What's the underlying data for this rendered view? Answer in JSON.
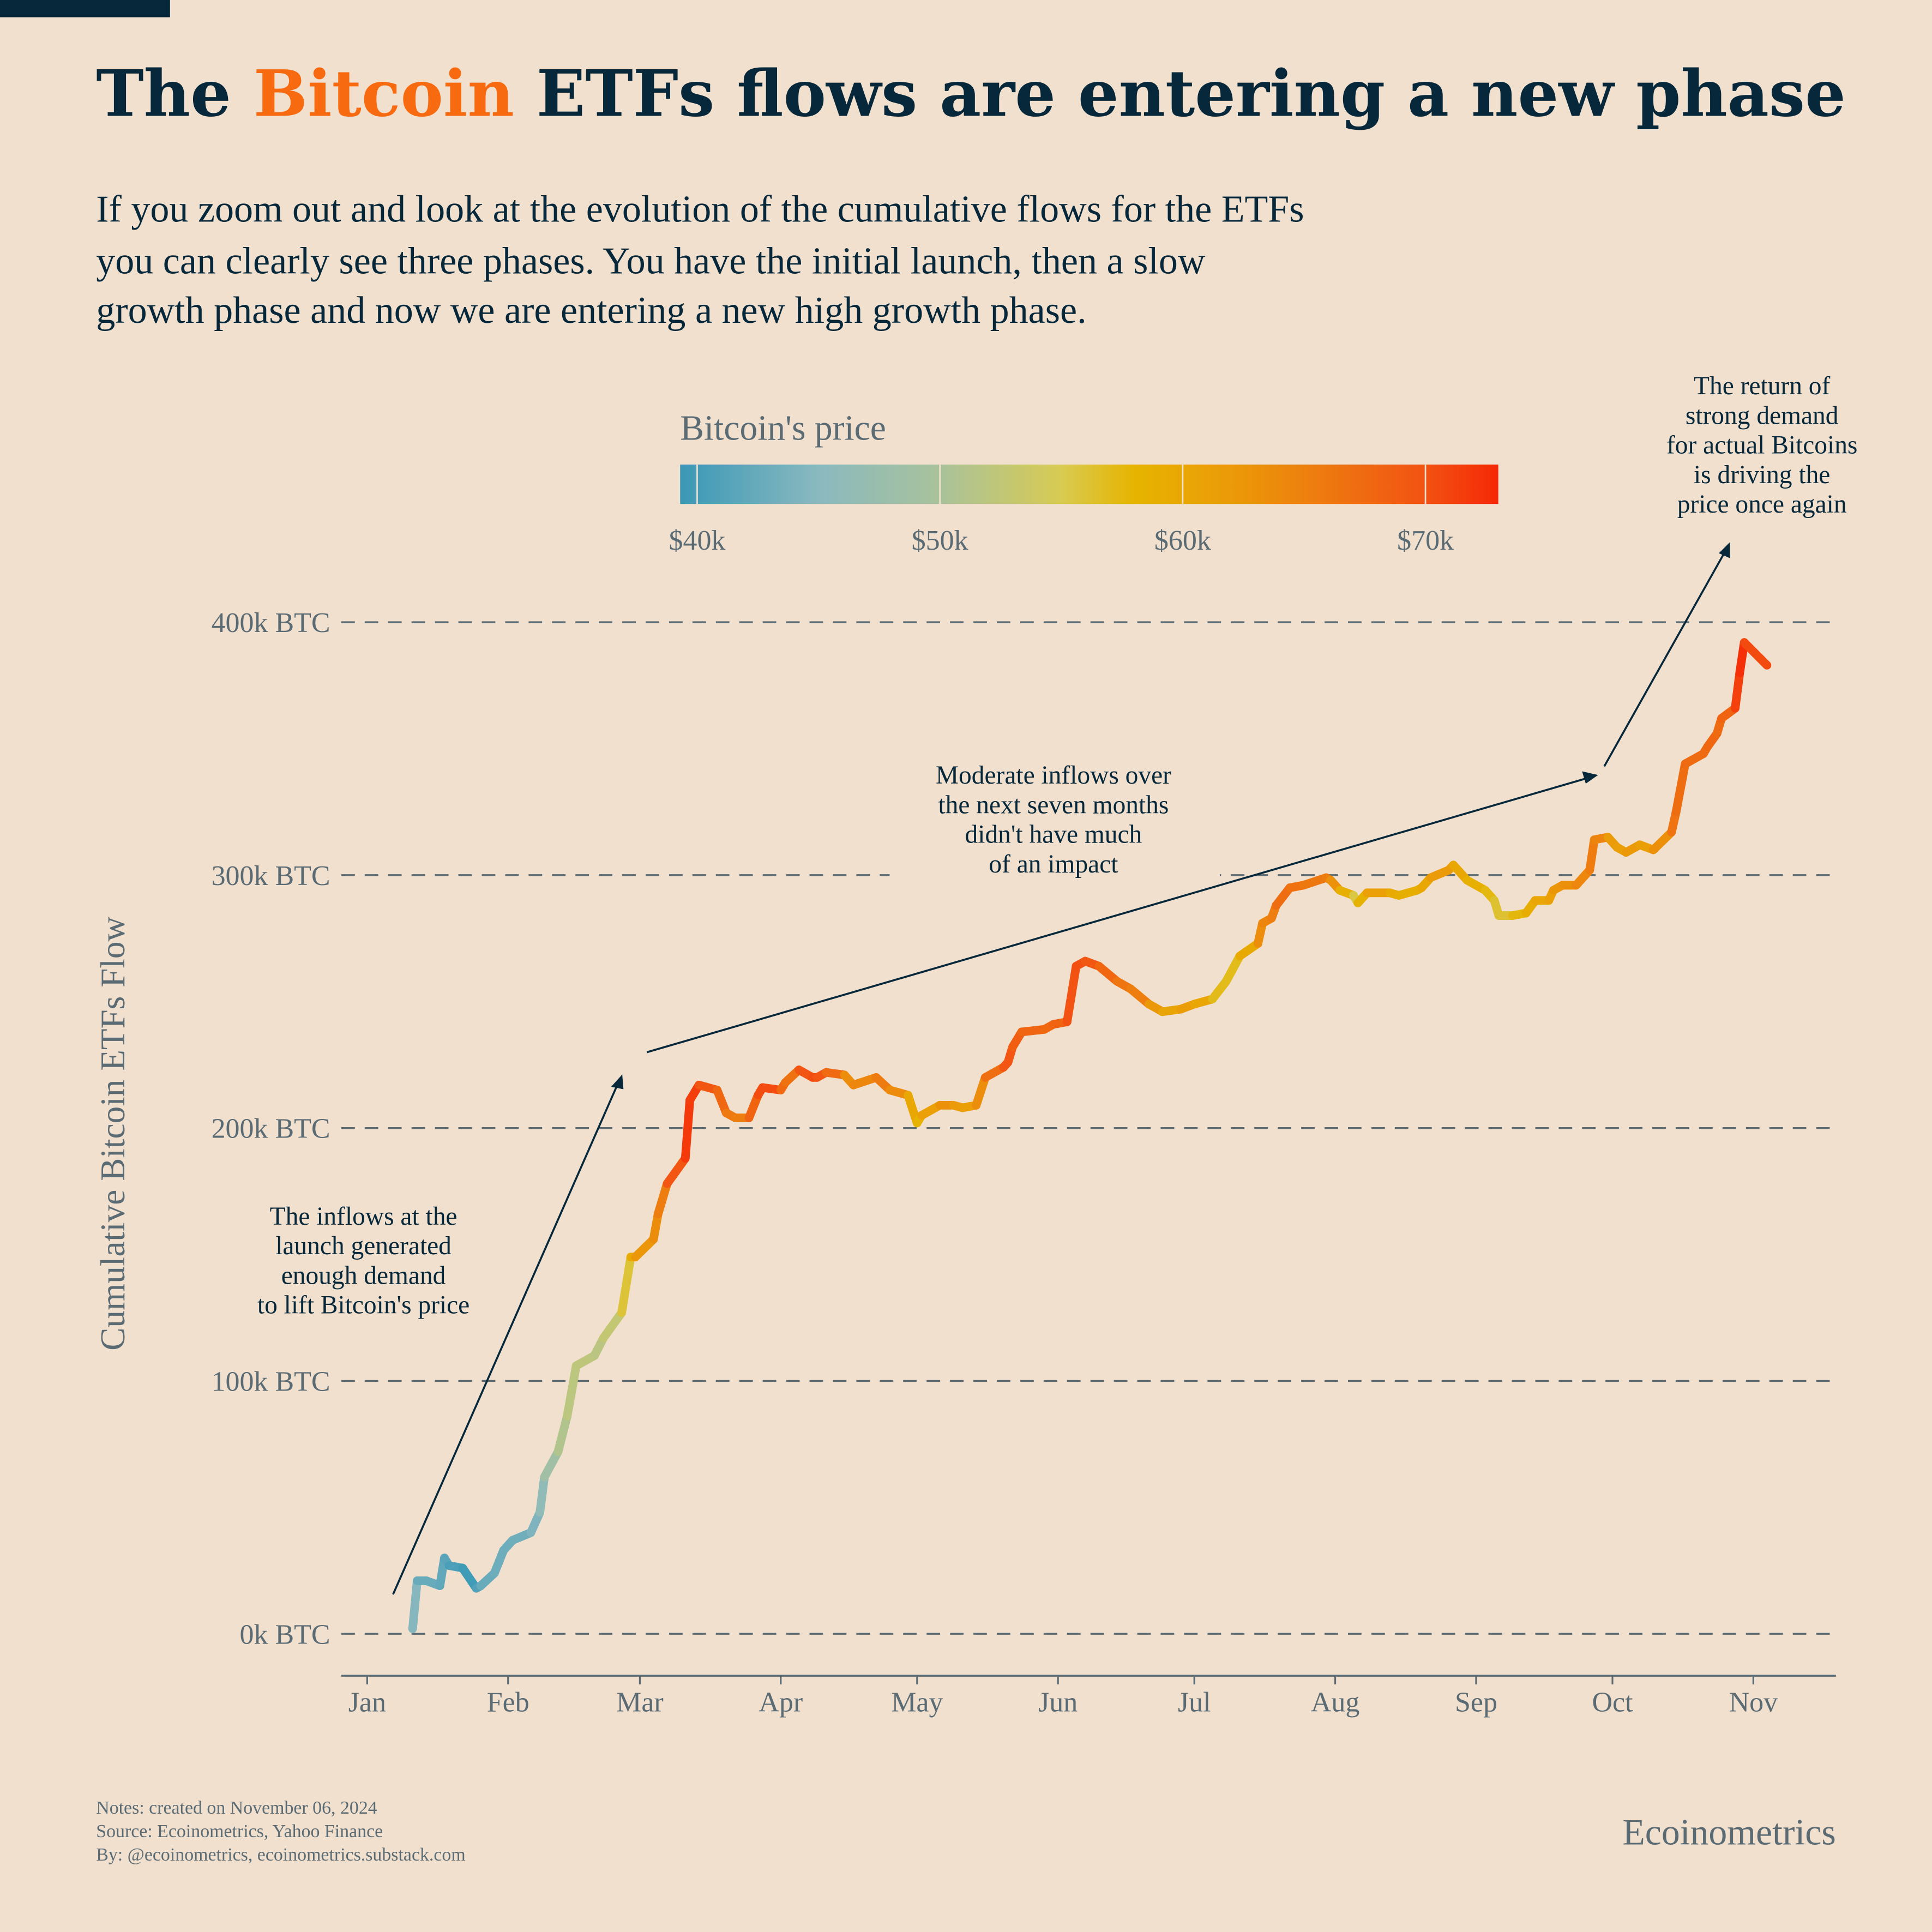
{
  "title": {
    "pre": "The ",
    "highlight": "Bitcoin",
    "post": " ETFs flows are entering a new phase",
    "highlight_color": "#f86a10"
  },
  "subtitle": [
    "If you zoom out and look at the evolution of the cumulative flows for the ETFs",
    "you can clearly see three phases. You have the initial launch, then a slow",
    "growth phase and now we are entering a new high growth phase."
  ],
  "colorbar": {
    "title": "Bitcoin's price",
    "ticks": [
      "$40k",
      "$50k",
      "$60k",
      "$70k"
    ],
    "tick_values": [
      40,
      50,
      60,
      70
    ],
    "range": [
      39.3,
      73
    ],
    "stops": [
      {
        "v": 39.3,
        "c": "#3a98b6"
      },
      {
        "v": 45,
        "c": "#8ab9bf"
      },
      {
        "v": 50,
        "c": "#a9c29b"
      },
      {
        "v": 55,
        "c": "#d8cb52"
      },
      {
        "v": 58,
        "c": "#e6b400"
      },
      {
        "v": 62,
        "c": "#eb9a08"
      },
      {
        "v": 66,
        "c": "#ee7810"
      },
      {
        "v": 70,
        "c": "#f25212"
      },
      {
        "v": 73,
        "c": "#f52806"
      }
    ]
  },
  "annotations": {
    "launch": [
      "The inflows at the",
      "launch generated",
      "enough demand",
      "to lift Bitcoin's price"
    ],
    "moderate": [
      "Moderate inflows over",
      "the next seven months",
      "didn't have much",
      "of an impact"
    ],
    "return": [
      "The return of",
      "strong demand",
      "for actual Bitcoins",
      "is driving the",
      "price once again"
    ]
  },
  "chart_data": {
    "type": "line",
    "title": "",
    "xlabel": "",
    "ylabel": "Cumulative Bitcoin ETFs Flow",
    "ylim": [
      0,
      400
    ],
    "y_ticks": [
      "0k BTC",
      "100k BTC",
      "200k BTC",
      "300k BTC",
      "400k BTC"
    ],
    "y_tick_values": [
      0,
      100,
      200,
      300,
      400
    ],
    "x_ticks": [
      "Jan",
      "Feb",
      "Mar",
      "Apr",
      "May",
      "Jun",
      "Jul",
      "Aug",
      "Sep",
      "Oct",
      "Nov"
    ],
    "x_tick_dates": [
      "2024-01-01",
      "2024-02-01",
      "2024-03-01",
      "2024-04-01",
      "2024-05-01",
      "2024-06-01",
      "2024-07-01",
      "2024-08-01",
      "2024-09-01",
      "2024-10-01",
      "2024-11-01"
    ],
    "grid": "horizontal dashed",
    "color_by": "Bitcoin's price (k$)",
    "points": [
      [
        "2024-01-11",
        2,
        46.6
      ],
      [
        "2024-01-12",
        21,
        42.8
      ],
      [
        "2024-01-14",
        21,
        42.5
      ],
      [
        "2024-01-17",
        19,
        42.7
      ],
      [
        "2024-01-18",
        30,
        41.3
      ],
      [
        "2024-01-19",
        27,
        41.6
      ],
      [
        "2024-01-22",
        26,
        39.5
      ],
      [
        "2024-01-25",
        18,
        40.0
      ],
      [
        "2024-01-26",
        19,
        41.8
      ],
      [
        "2024-01-29",
        24,
        43.3
      ],
      [
        "2024-01-31",
        33,
        42.6
      ],
      [
        "2024-02-02",
        37,
        43.2
      ],
      [
        "2024-02-06",
        40,
        43.1
      ],
      [
        "2024-02-08",
        48,
        45.3
      ],
      [
        "2024-02-09",
        62,
        47.1
      ],
      [
        "2024-02-12",
        72,
        50.0
      ],
      [
        "2024-02-14",
        86,
        51.8
      ],
      [
        "2024-02-16",
        106,
        52.1
      ],
      [
        "2024-02-20",
        110,
        52.3
      ],
      [
        "2024-02-22",
        117,
        51.3
      ],
      [
        "2024-02-26",
        127,
        54.5
      ],
      [
        "2024-02-28",
        149,
        57.5
      ],
      [
        "2024-02-29",
        149,
        61.2
      ],
      [
        "2024-03-04",
        156,
        63.5
      ],
      [
        "2024-03-05",
        166,
        63.8
      ],
      [
        "2024-03-07",
        178,
        67.0
      ],
      [
        "2024-03-11",
        188,
        72.1
      ],
      [
        "2024-03-12",
        211,
        71.5
      ],
      [
        "2024-03-14",
        217,
        71.4
      ],
      [
        "2024-03-18",
        215,
        67.6
      ],
      [
        "2024-03-20",
        206,
        67.9
      ],
      [
        "2024-03-22",
        204,
        63.8
      ],
      [
        "2024-03-25",
        204,
        67.0
      ],
      [
        "2024-03-27",
        213,
        69.5
      ],
      [
        "2024-03-28",
        216,
        71.3
      ],
      [
        "2024-04-01",
        215,
        69.7
      ],
      [
        "2024-04-02",
        218,
        65.5
      ],
      [
        "2024-04-05",
        223,
        67.8
      ],
      [
        "2024-04-08",
        220,
        71.6
      ],
      [
        "2024-04-09",
        220,
        69.1
      ],
      [
        "2024-04-11",
        222,
        70.0
      ],
      [
        "2024-04-15",
        221,
        65.0
      ],
      [
        "2024-04-17",
        217,
        62.0
      ],
      [
        "2024-04-22",
        220,
        66.8
      ],
      [
        "2024-04-25",
        215,
        64.5
      ],
      [
        "2024-04-29",
        213,
        63.1
      ],
      [
        "2024-05-01",
        202,
        57.0
      ],
      [
        "2024-05-02",
        205,
        59.1
      ],
      [
        "2024-05-06",
        209,
        63.2
      ],
      [
        "2024-05-09",
        209,
        63.1
      ],
      [
        "2024-05-11",
        208,
        60.8
      ],
      [
        "2024-05-14",
        209,
        61.6
      ],
      [
        "2024-05-16",
        220,
        65.2
      ],
      [
        "2024-05-20",
        224,
        69.0
      ],
      [
        "2024-05-21",
        226,
        70.1
      ],
      [
        "2024-05-22",
        232,
        69.1
      ],
      [
        "2024-05-24",
        238,
        68.5
      ],
      [
        "2024-05-29",
        239,
        67.6
      ],
      [
        "2024-05-31",
        241,
        67.5
      ],
      [
        "2024-06-03",
        242,
        68.8
      ],
      [
        "2024-06-05",
        264,
        71.1
      ],
      [
        "2024-06-07",
        266,
        69.3
      ],
      [
        "2024-06-10",
        264,
        69.7
      ],
      [
        "2024-06-14",
        258,
        66.0
      ],
      [
        "2024-06-17",
        255,
        66.6
      ],
      [
        "2024-06-21",
        249,
        64.1
      ],
      [
        "2024-06-24",
        246,
        60.3
      ],
      [
        "2024-06-28",
        247,
        60.3
      ],
      [
        "2024-07-01",
        249,
        62.7
      ],
      [
        "2024-07-05",
        251,
        57.5
      ],
      [
        "2024-07-08",
        258,
        56.7
      ],
      [
        "2024-07-11",
        268,
        57.3
      ],
      [
        "2024-07-15",
        273,
        62.0
      ],
      [
        "2024-07-16",
        281,
        65.0
      ],
      [
        "2024-07-18",
        283,
        63.9
      ],
      [
        "2024-07-19",
        288,
        66.7
      ],
      [
        "2024-07-22",
        295,
        67.6
      ],
      [
        "2024-07-25",
        296,
        65.8
      ],
      [
        "2024-07-30",
        299,
        66.2
      ],
      [
        "2024-07-31",
        298,
        64.6
      ],
      [
        "2024-08-02",
        294,
        61.4
      ],
      [
        "2024-08-05",
        292,
        56.0
      ],
      [
        "2024-08-06",
        289,
        55.0
      ],
      [
        "2024-08-08",
        293,
        61.7
      ],
      [
        "2024-08-13",
        293,
        60.6
      ],
      [
        "2024-08-15",
        292,
        58.5
      ],
      [
        "2024-08-19",
        294,
        59.5
      ],
      [
        "2024-08-20",
        295,
        59.0
      ],
      [
        "2024-08-22",
        299,
        61.0
      ],
      [
        "2024-08-26",
        302,
        62.9
      ],
      [
        "2024-08-27",
        304,
        61.0
      ],
      [
        "2024-08-30",
        298,
        59.1
      ],
      [
        "2024-09-03",
        294,
        58.0
      ],
      [
        "2024-09-05",
        290,
        57.0
      ],
      [
        "2024-09-06",
        284,
        55.5
      ],
      [
        "2024-09-09",
        284,
        57.0
      ],
      [
        "2024-09-12",
        285,
        58.1
      ],
      [
        "2024-09-14",
        290,
        60.0
      ],
      [
        "2024-09-17",
        290,
        60.3
      ],
      [
        "2024-09-18",
        294,
        61.8
      ],
      [
        "2024-09-20",
        296,
        63.2
      ],
      [
        "2024-09-23",
        296,
        63.3
      ],
      [
        "2024-09-26",
        302,
        65.2
      ],
      [
        "2024-09-27",
        314,
        65.8
      ],
      [
        "2024-09-30",
        315,
        63.3
      ],
      [
        "2024-10-02",
        311,
        60.8
      ],
      [
        "2024-10-04",
        309,
        62.1
      ],
      [
        "2024-10-07",
        312,
        62.2
      ],
      [
        "2024-10-10",
        310,
        60.3
      ],
      [
        "2024-10-14",
        317,
        66.0
      ],
      [
        "2024-10-15",
        325,
        67.0
      ],
      [
        "2024-10-17",
        344,
        67.4
      ],
      [
        "2024-10-21",
        348,
        67.4
      ],
      [
        "2024-10-22",
        351,
        67.4
      ],
      [
        "2024-10-24",
        356,
        68.2
      ],
      [
        "2024-10-25",
        362,
        66.6
      ],
      [
        "2024-10-28",
        366,
        69.9
      ],
      [
        "2024-10-29",
        380,
        72.7
      ],
      [
        "2024-10-30",
        392,
        72.3
      ],
      [
        "2024-11-04",
        383,
        68.8
      ]
    ]
  },
  "footer": {
    "notes": "Notes: created on November 06, 2024",
    "source": "Source: Ecoinometrics, Yahoo Finance",
    "by": "By: @ecoinometrics, ecoinometrics.substack.com",
    "brand": "Ecoinometrics"
  }
}
